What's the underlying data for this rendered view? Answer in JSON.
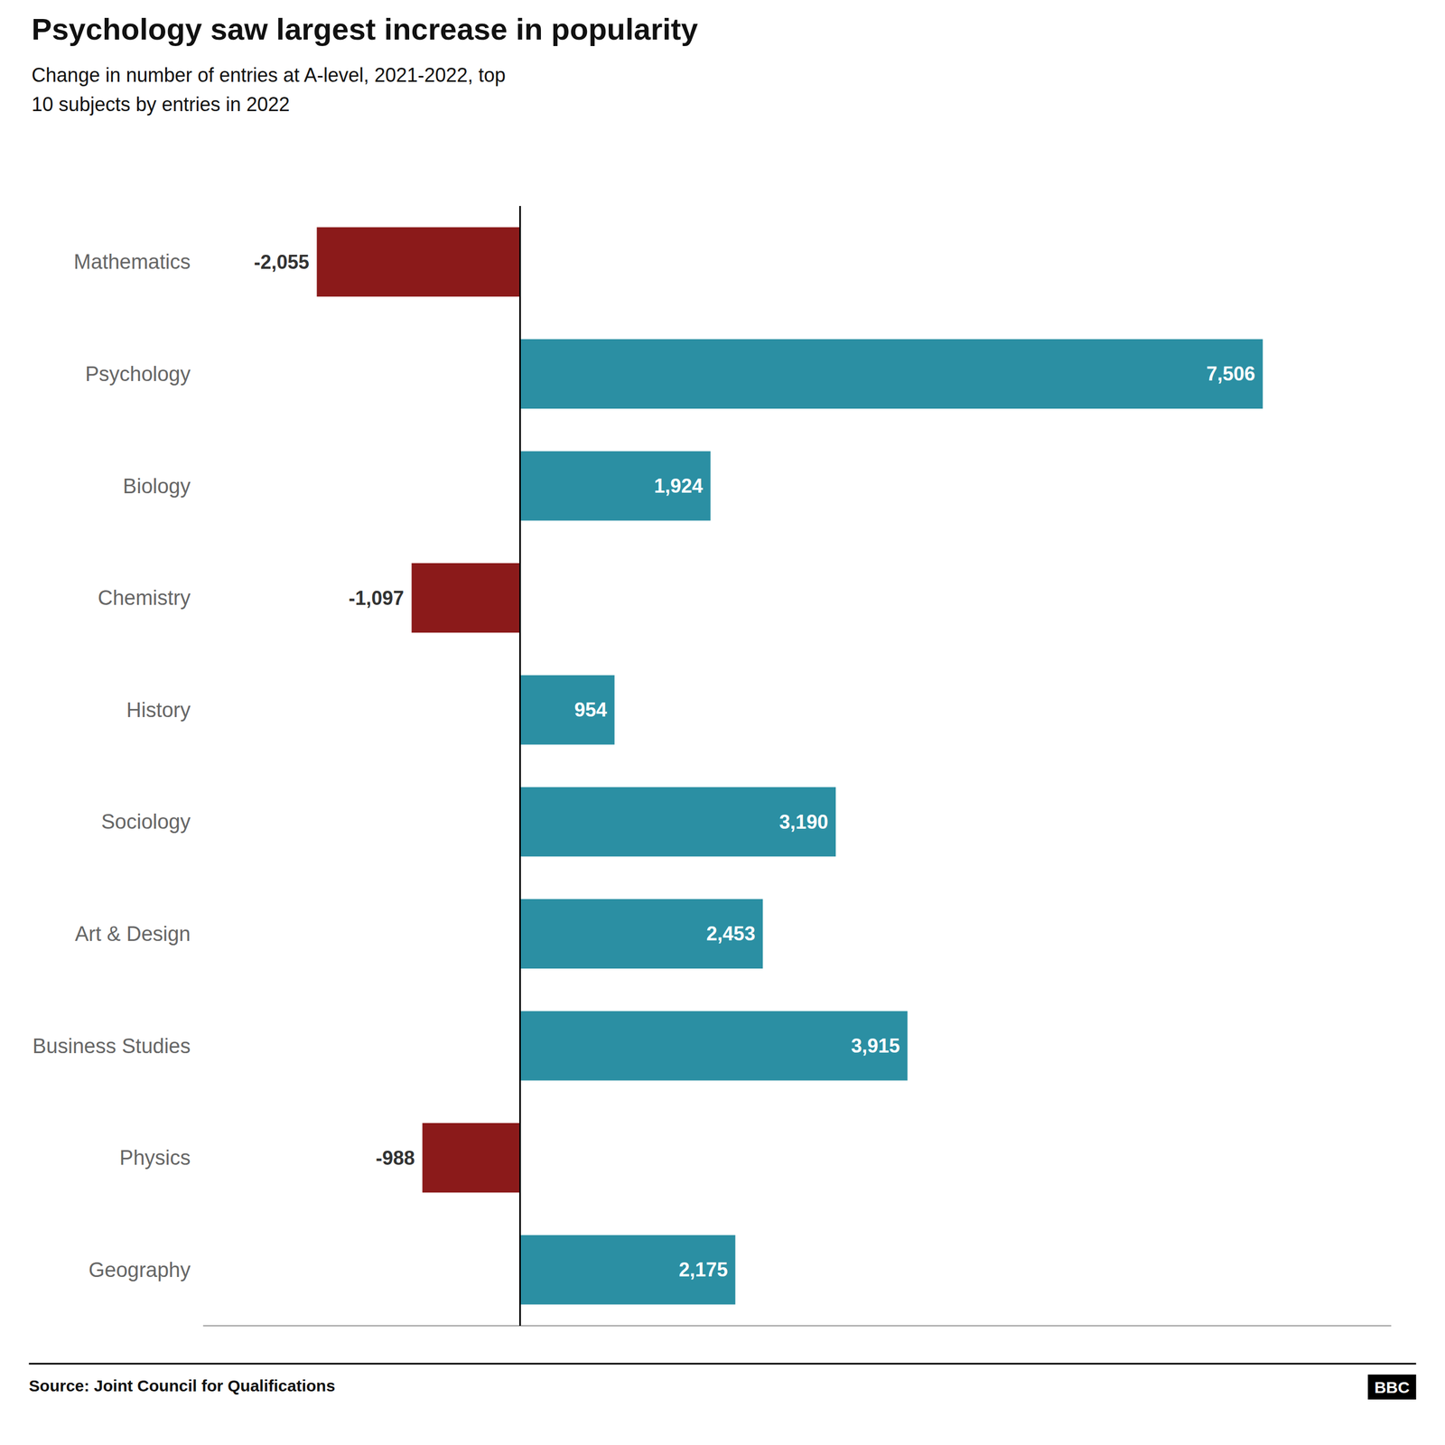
{
  "chart_data": {
    "type": "bar",
    "orientation": "horizontal",
    "title": "Psychology saw largest increase in popularity",
    "subtitle": "Change in number of entries at A-level, 2021-2022, top\n10 subjects by entries in 2022",
    "annotations": [
      "Source: Joint Council for Qualifications",
      "BBC"
    ],
    "categories": [
      "Mathematics",
      "Psychology",
      "Biology",
      "Chemistry",
      "History",
      "Sociology",
      "Art & Design",
      "Business Studies",
      "Physics",
      "Geography"
    ],
    "values": [
      -2055,
      7506,
      1924,
      -1097,
      954,
      3190,
      2453,
      3915,
      -988,
      2175
    ],
    "value_labels": [
      "-2,055",
      "7,506",
      "1,924",
      "-1,097",
      "954",
      "3,190",
      "2,453",
      "3,915",
      "-988",
      "2,175"
    ],
    "colors": [
      "#8b1a1a",
      "#2b8fa3",
      "#2b8fa3",
      "#8b1a1a",
      "#2b8fa3",
      "#2b8fa3",
      "#2b8fa3",
      "#2b8fa3",
      "#8b1a1a",
      "#2b8fa3"
    ],
    "xlim": [
      -3200,
      8800
    ],
    "data_labels": true,
    "tick_labels": "y",
    "grid": false
  }
}
